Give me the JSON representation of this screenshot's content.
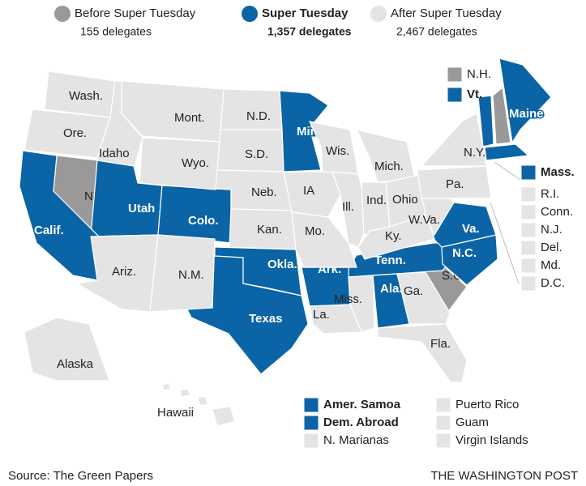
{
  "legend": [
    {
      "label": "Before Super Tuesday",
      "delegates": "155 delegates",
      "color": "#999999",
      "states": [
        "N.H.",
        "Nev.",
        "S.C."
      ]
    },
    {
      "label": "Super Tuesday",
      "delegates": "1,357 delegates",
      "color": "#0b64a6",
      "states": [
        "Vt.",
        "Maine",
        "Minn.",
        "Utah",
        "Colo.",
        "Calif.",
        "Texas",
        "Okla.",
        "Ark.",
        "Tenn.",
        "N.C.",
        "Va.",
        "Ala.",
        "Mass.",
        "Amer. Samoa",
        "Dem.  Abroad"
      ]
    },
    {
      "label": "After Super Tuesday",
      "delegates": "2,467 delegates",
      "color": "#e4e4e4",
      "states": [
        "Wash.",
        "Ore.",
        "Idaho",
        "Mont.",
        "Wyo.",
        "N.D.",
        "S.D.",
        "Neb.",
        "Kan.",
        "Ariz.",
        "N.M.",
        "IA",
        "Wis.",
        "Mich.",
        "Ill.",
        "Ind.",
        "Ohio",
        "Mo.",
        "Ky.",
        "W.Va.",
        "Miss.",
        "La.",
        "Ga.",
        "Fla.",
        "Pa.",
        "N.Y.",
        "Alaska",
        "Hawaii",
        "R.I.",
        "Conn.",
        "N.J.",
        "Del.",
        "Md.",
        "D.C.",
        "N. Marianas",
        "Puerto Rico",
        "Guam",
        "Virgin Islands"
      ]
    }
  ],
  "source": "Source: The Green Papers",
  "credit": "THE WASHINGTON POST"
}
